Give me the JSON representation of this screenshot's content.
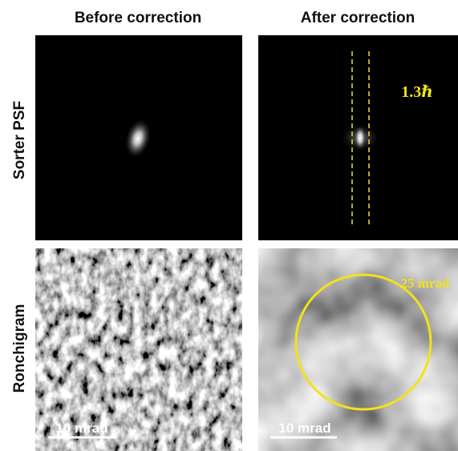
{
  "columns": [
    "Before correction",
    "After correction"
  ],
  "rows": [
    "Sorter PSF",
    "Ronchigram"
  ],
  "panels": {
    "psf_after": {
      "annotation": "1.3ℏ"
    },
    "ronchi_before": {
      "scale_bar": "10 mrad"
    },
    "ronchi_after": {
      "annotation": "25 mrad",
      "scale_bar": "10 mrad"
    }
  }
}
